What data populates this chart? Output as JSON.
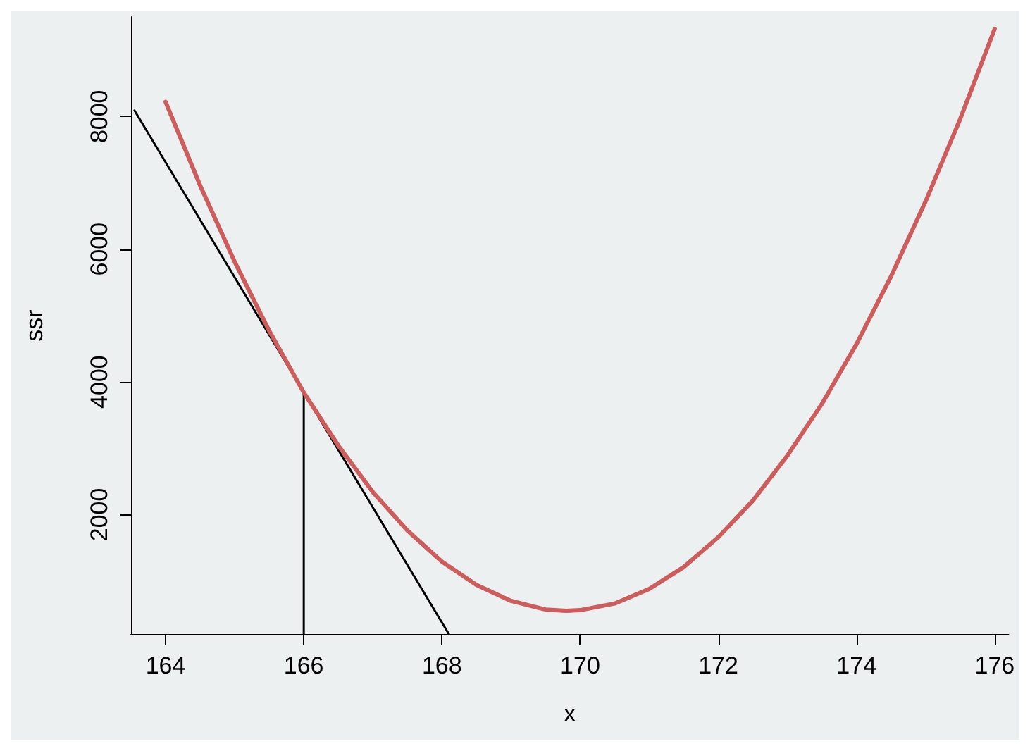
{
  "chart_data": {
    "type": "line",
    "xlabel": "x",
    "ylabel": "ssr",
    "xlim": [
      163.5,
      176.2
    ],
    "ylim": [
      200,
      9500
    ],
    "xticks": [
      164,
      166,
      168,
      170,
      172,
      174,
      176
    ],
    "yticks": [
      2000,
      4000,
      6000,
      8000
    ],
    "grid": false,
    "marker": "none",
    "line_style": "solid",
    "series": [
      {
        "color": "#cd5c5c",
        "x": [
          164,
          164.5,
          165,
          165.5,
          166,
          166.5,
          167,
          167.5,
          168,
          168.5,
          169,
          169.5,
          169.8,
          170,
          170.5,
          171,
          171.5,
          172,
          172.5,
          173,
          173.5,
          174,
          174.5,
          175,
          175.5,
          176
        ],
        "values": [
          8220,
          6960,
          5810,
          4770,
          3840,
          3040,
          2340,
          1760,
          1290,
          940,
          700,
          570,
          550,
          560,
          660,
          880,
          1210,
          1660,
          2210,
          2890,
          3670,
          4570,
          5590,
          6720,
          7960,
          9320
        ]
      },
      {
        "color": "#000000",
        "x": [
          163.55,
          168.1
        ],
        "values": [
          8090,
          200
        ]
      },
      {
        "color": "#000000",
        "x": [
          166,
          166
        ],
        "values": [
          200,
          3840
        ]
      }
    ]
  }
}
